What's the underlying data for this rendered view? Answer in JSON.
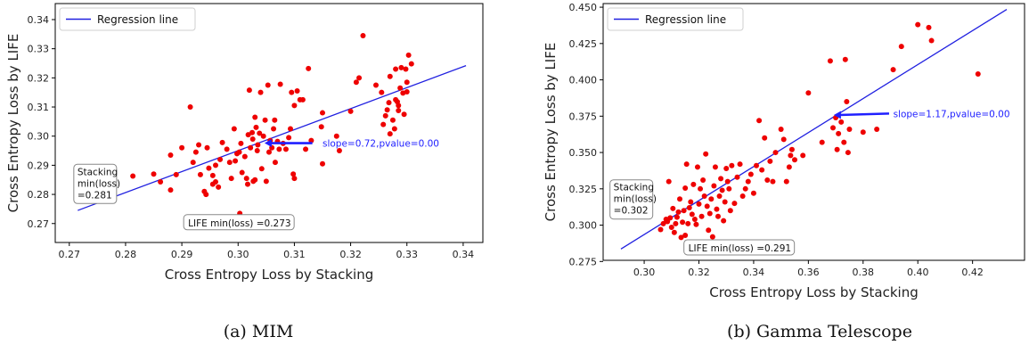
{
  "chart_data": [
    {
      "type": "scatter",
      "caption": "(a) MIM",
      "xlabel": "Cross Entropy Loss by Stacking",
      "ylabel": "Cross Entropy Loss by LIFE",
      "xlim": [
        0.2675,
        0.3435
      ],
      "ylim": [
        0.2635,
        0.3455
      ],
      "xticks": [
        0.27,
        0.28,
        0.29,
        0.3,
        0.31,
        0.32,
        0.33,
        0.34
      ],
      "xtick_labels": [
        "0.27",
        "0.28",
        "0.29",
        "0.30",
        "0.31",
        "0.32",
        "0.33",
        "0.34"
      ],
      "yticks": [
        0.27,
        0.28,
        0.29,
        0.3,
        0.31,
        0.32,
        0.33,
        0.34
      ],
      "ytick_labels": [
        "0.27",
        "0.28",
        "0.29",
        "0.30",
        "0.31",
        "0.32",
        "0.33",
        "0.34"
      ],
      "legend": "Regression line",
      "regression": {
        "x": [
          0.2715,
          0.3405
        ],
        "y": [
          0.2745,
          0.3242
        ],
        "color": "#2020e0"
      },
      "slope_text": "slope=0.72,pvalue=0.00",
      "arrow": {
        "from": [
          0.3132,
          0.2976
        ],
        "to": [
          0.3047,
          0.2976
        ]
      },
      "slope_text_pos": [
        0.315,
        0.2976
      ],
      "stacking_annotation": {
        "lines": [
          "Stacking",
          " min(loss)",
          "=0.281"
        ],
        "anchor": [
          0.2708,
          0.2885
        ]
      },
      "life_annotation": {
        "text": "LIFE min(loss) =0.273",
        "anchor": [
          0.2908,
          0.27
        ]
      },
      "point_color": "#ee0000",
      "points": [
        [
          0.2813,
          0.2863
        ],
        [
          0.285,
          0.287
        ],
        [
          0.2862,
          0.2843
        ],
        [
          0.288,
          0.2935
        ],
        [
          0.288,
          0.2815
        ],
        [
          0.289,
          0.2868
        ],
        [
          0.29,
          0.296
        ],
        [
          0.2915,
          0.31
        ],
        [
          0.292,
          0.291
        ],
        [
          0.2925,
          0.2945
        ],
        [
          0.293,
          0.297
        ],
        [
          0.2933,
          0.2868
        ],
        [
          0.294,
          0.281
        ],
        [
          0.2943,
          0.28
        ],
        [
          0.2945,
          0.296
        ],
        [
          0.2948,
          0.289
        ],
        [
          0.2955,
          0.2865
        ],
        [
          0.2955,
          0.2835
        ],
        [
          0.296,
          0.2843
        ],
        [
          0.296,
          0.29
        ],
        [
          0.2965,
          0.2825
        ],
        [
          0.2968,
          0.292
        ],
        [
          0.2972,
          0.2978
        ],
        [
          0.298,
          0.2955
        ],
        [
          0.2985,
          0.291
        ],
        [
          0.2988,
          0.2855
        ],
        [
          0.2993,
          0.3025
        ],
        [
          0.2995,
          0.2915
        ],
        [
          0.2998,
          0.294
        ],
        [
          0.3002,
          0.2945
        ],
        [
          0.3003,
          0.2735
        ],
        [
          0.3005,
          0.2975
        ],
        [
          0.3007,
          0.2875
        ],
        [
          0.3012,
          0.293
        ],
        [
          0.3015,
          0.2855
        ],
        [
          0.3017,
          0.2835
        ],
        [
          0.3018,
          0.3005
        ],
        [
          0.302,
          0.3158
        ],
        [
          0.3022,
          0.296
        ],
        [
          0.3025,
          0.3012
        ],
        [
          0.3026,
          0.299
        ],
        [
          0.3027,
          0.2845
        ],
        [
          0.303,
          0.285
        ],
        [
          0.303,
          0.3065
        ],
        [
          0.3032,
          0.303
        ],
        [
          0.3034,
          0.295
        ],
        [
          0.3035,
          0.297
        ],
        [
          0.3038,
          0.301
        ],
        [
          0.304,
          0.315
        ],
        [
          0.3042,
          0.2888
        ],
        [
          0.3045,
          0.3
        ],
        [
          0.3048,
          0.3055
        ],
        [
          0.305,
          0.2845
        ],
        [
          0.3053,
          0.3175
        ],
        [
          0.3055,
          0.2945
        ],
        [
          0.3057,
          0.2985
        ],
        [
          0.306,
          0.296
        ],
        [
          0.3063,
          0.3025
        ],
        [
          0.3065,
          0.3055
        ],
        [
          0.3066,
          0.291
        ],
        [
          0.307,
          0.2982
        ],
        [
          0.3073,
          0.2955
        ],
        [
          0.3075,
          0.3178
        ],
        [
          0.308,
          0.2975
        ],
        [
          0.3085,
          0.2955
        ],
        [
          0.309,
          0.2995
        ],
        [
          0.3093,
          0.3025
        ],
        [
          0.3095,
          0.315
        ],
        [
          0.3098,
          0.287
        ],
        [
          0.31,
          0.3105
        ],
        [
          0.31,
          0.2855
        ],
        [
          0.3105,
          0.3155
        ],
        [
          0.311,
          0.3125
        ],
        [
          0.3115,
          0.3125
        ],
        [
          0.312,
          0.2955
        ],
        [
          0.3125,
          0.3232
        ],
        [
          0.313,
          0.2985
        ],
        [
          0.3148,
          0.3032
        ],
        [
          0.315,
          0.308
        ],
        [
          0.315,
          0.2905
        ],
        [
          0.3175,
          0.3
        ],
        [
          0.318,
          0.295
        ],
        [
          0.32,
          0.3085
        ],
        [
          0.321,
          0.3185
        ],
        [
          0.3215,
          0.32
        ],
        [
          0.3222,
          0.3345
        ],
        [
          0.3245,
          0.3175
        ],
        [
          0.3255,
          0.315
        ],
        [
          0.3258,
          0.304
        ],
        [
          0.3262,
          0.307
        ],
        [
          0.3265,
          0.309
        ],
        [
          0.3268,
          0.3115
        ],
        [
          0.327,
          0.3008
        ],
        [
          0.327,
          0.3205
        ],
        [
          0.3275,
          0.3055
        ],
        [
          0.3278,
          0.3025
        ],
        [
          0.328,
          0.3125
        ],
        [
          0.328,
          0.323
        ],
        [
          0.3283,
          0.3118
        ],
        [
          0.3285,
          0.3088
        ],
        [
          0.3285,
          0.3105
        ],
        [
          0.3288,
          0.3165
        ],
        [
          0.329,
          0.3235
        ],
        [
          0.3293,
          0.3148
        ],
        [
          0.3295,
          0.3075
        ],
        [
          0.3298,
          0.323
        ],
        [
          0.33,
          0.3185
        ],
        [
          0.33,
          0.3152
        ],
        [
          0.3303,
          0.3278
        ],
        [
          0.3308,
          0.3248
        ]
      ]
    },
    {
      "type": "scatter",
      "caption": "(b) Gamma Telescope",
      "xlabel": "Cross Entropy Loss by Stacking",
      "ylabel": "Cross Entropy Loss by LIFE",
      "xlim": [
        0.285,
        0.439
      ],
      "ylim": [
        0.2758,
        0.4525
      ],
      "xticks": [
        0.3,
        0.32,
        0.34,
        0.36,
        0.38,
        0.4,
        0.42
      ],
      "xtick_labels": [
        "0.30",
        "0.32",
        "0.34",
        "0.36",
        "0.38",
        "0.40",
        "0.42"
      ],
      "yticks": [
        0.275,
        0.3,
        0.325,
        0.35,
        0.375,
        0.4,
        0.425,
        0.45
      ],
      "ytick_labels": [
        "0.275",
        "0.300",
        "0.325",
        "0.350",
        "0.375",
        "0.400",
        "0.425",
        "0.450"
      ],
      "legend": "Regression line",
      "regression": {
        "x": [
          0.2915,
          0.4325
        ],
        "y": [
          0.2836,
          0.4485
        ],
        "color": "#2020e0"
      },
      "slope_text": "slope=1.17,pvalue=0.00",
      "arrow": {
        "from": [
          0.3895,
          0.3768
        ],
        "to": [
          0.3693,
          0.3758
        ]
      },
      "slope_text_pos": [
        0.391,
        0.3768
      ],
      "stacking_annotation": {
        "lines": [
          "Stacking",
          " min(loss)",
          "=0.302"
        ],
        "anchor": [
          0.2875,
          0.3275
        ]
      },
      "life_annotation": {
        "text": "LIFE min(loss) =0.291",
        "anchor": [
          0.3155,
          0.2838
        ]
      },
      "point_color": "#ee0000",
      "points": [
        [
          0.302,
          0.307
        ],
        [
          0.306,
          0.297
        ],
        [
          0.307,
          0.301
        ],
        [
          0.308,
          0.304
        ],
        [
          0.3085,
          0.3025
        ],
        [
          0.309,
          0.33
        ],
        [
          0.3095,
          0.305
        ],
        [
          0.31,
          0.2985
        ],
        [
          0.3105,
          0.3115
        ],
        [
          0.311,
          0.295
        ],
        [
          0.3115,
          0.301
        ],
        [
          0.312,
          0.3055
        ],
        [
          0.3125,
          0.309
        ],
        [
          0.313,
          0.318
        ],
        [
          0.3135,
          0.2915
        ],
        [
          0.314,
          0.302
        ],
        [
          0.3145,
          0.31
        ],
        [
          0.315,
          0.3255
        ],
        [
          0.315,
          0.293
        ],
        [
          0.3155,
          0.342
        ],
        [
          0.316,
          0.301
        ],
        [
          0.3165,
          0.312
        ],
        [
          0.317,
          0.316
        ],
        [
          0.3175,
          0.3075
        ],
        [
          0.318,
          0.328
        ],
        [
          0.3185,
          0.304
        ],
        [
          0.319,
          0.3005
        ],
        [
          0.3195,
          0.34
        ],
        [
          0.32,
          0.3145
        ],
        [
          0.3205,
          0.325
        ],
        [
          0.321,
          0.306
        ],
        [
          0.3215,
          0.331
        ],
        [
          0.322,
          0.32
        ],
        [
          0.3225,
          0.349
        ],
        [
          0.323,
          0.313
        ],
        [
          0.3235,
          0.2965
        ],
        [
          0.324,
          0.308
        ],
        [
          0.3245,
          0.318
        ],
        [
          0.325,
          0.292
        ],
        [
          0.3255,
          0.327
        ],
        [
          0.326,
          0.34
        ],
        [
          0.3265,
          0.311
        ],
        [
          0.327,
          0.306
        ],
        [
          0.3275,
          0.32
        ],
        [
          0.328,
          0.332
        ],
        [
          0.3285,
          0.324
        ],
        [
          0.329,
          0.303
        ],
        [
          0.3295,
          0.316
        ],
        [
          0.33,
          0.339
        ],
        [
          0.3305,
          0.33
        ],
        [
          0.331,
          0.325
        ],
        [
          0.3315,
          0.31
        ],
        [
          0.332,
          0.341
        ],
        [
          0.333,
          0.315
        ],
        [
          0.334,
          0.333
        ],
        [
          0.335,
          0.342
        ],
        [
          0.336,
          0.32
        ],
        [
          0.337,
          0.325
        ],
        [
          0.338,
          0.33
        ],
        [
          0.339,
          0.335
        ],
        [
          0.34,
          0.322
        ],
        [
          0.341,
          0.341
        ],
        [
          0.342,
          0.372
        ],
        [
          0.343,
          0.338
        ],
        [
          0.344,
          0.36
        ],
        [
          0.345,
          0.331
        ],
        [
          0.346,
          0.344
        ],
        [
          0.347,
          0.33
        ],
        [
          0.348,
          0.35
        ],
        [
          0.35,
          0.366
        ],
        [
          0.351,
          0.359
        ],
        [
          0.352,
          0.33
        ],
        [
          0.353,
          0.34
        ],
        [
          0.3535,
          0.348
        ],
        [
          0.354,
          0.352
        ],
        [
          0.355,
          0.345
        ],
        [
          0.358,
          0.348
        ],
        [
          0.36,
          0.391
        ],
        [
          0.365,
          0.357
        ],
        [
          0.368,
          0.413
        ],
        [
          0.369,
          0.367
        ],
        [
          0.37,
          0.374
        ],
        [
          0.3705,
          0.352
        ],
        [
          0.371,
          0.363
        ],
        [
          0.372,
          0.371
        ],
        [
          0.373,
          0.357
        ],
        [
          0.3735,
          0.414
        ],
        [
          0.374,
          0.385
        ],
        [
          0.3745,
          0.35
        ],
        [
          0.375,
          0.366
        ],
        [
          0.38,
          0.364
        ],
        [
          0.385,
          0.366
        ],
        [
          0.391,
          0.407
        ],
        [
          0.394,
          0.423
        ],
        [
          0.4,
          0.438
        ],
        [
          0.404,
          0.436
        ],
        [
          0.405,
          0.427
        ],
        [
          0.422,
          0.404
        ]
      ]
    }
  ]
}
